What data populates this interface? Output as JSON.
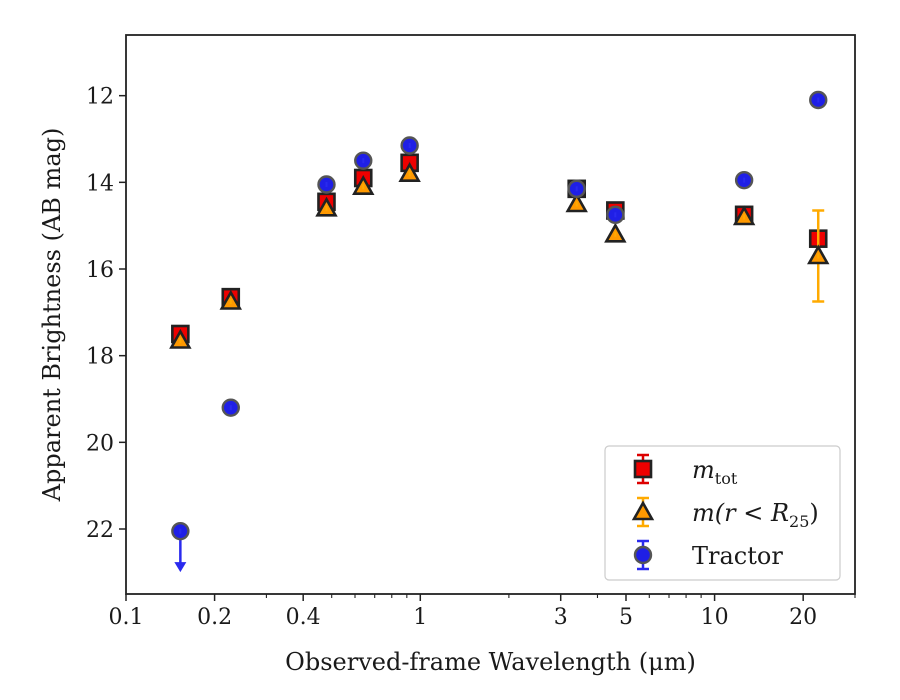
{
  "chart_data": {
    "type": "scatter",
    "title": "",
    "xlabel": "Observed-frame Wavelength (μm)",
    "ylabel": "Apparent Brightness (AB mag)",
    "xscale": "log",
    "xlim": [
      0.1,
      30
    ],
    "ylim": [
      23.5,
      10.6
    ],
    "y_inverted": true,
    "grid": false,
    "legend_position": "lower-right",
    "xticks": [
      {
        "value": 0.1,
        "label": "0.1"
      },
      {
        "value": 0.2,
        "label": "0.2"
      },
      {
        "value": 0.4,
        "label": "0.4"
      },
      {
        "value": 1,
        "label": "1"
      },
      {
        "value": 3,
        "label": "3"
      },
      {
        "value": 5,
        "label": "5"
      },
      {
        "value": 10,
        "label": "10"
      },
      {
        "value": 20,
        "label": "20"
      }
    ],
    "yticks": [
      {
        "value": 12,
        "label": "12"
      },
      {
        "value": 14,
        "label": "14"
      },
      {
        "value": 16,
        "label": "16"
      },
      {
        "value": 18,
        "label": "18"
      },
      {
        "value": 20,
        "label": "20"
      },
      {
        "value": 22,
        "label": "22"
      }
    ],
    "series": [
      {
        "key": "mtot",
        "legend_label": "m",
        "legend_sub": "tot",
        "marker": "square",
        "color": "#ee0000",
        "edge": "#222222",
        "errcolor": "#dd0000",
        "points": [
          {
            "x": 0.153,
            "y": 17.5
          },
          {
            "x": 0.227,
            "y": 16.65
          },
          {
            "x": 0.48,
            "y": 14.45
          },
          {
            "x": 0.64,
            "y": 13.9
          },
          {
            "x": 0.92,
            "y": 13.55
          },
          {
            "x": 3.4,
            "y": 14.15
          },
          {
            "x": 4.6,
            "y": 14.65
          },
          {
            "x": 12.6,
            "y": 14.75
          },
          {
            "x": 22.5,
            "y": 15.3
          }
        ]
      },
      {
        "key": "mr25",
        "legend_label": "m(r < R",
        "legend_sub": "25",
        "legend_tail": ")",
        "marker": "triangle",
        "color": "#ff9900",
        "edge": "#222222",
        "errcolor": "#ffaa00",
        "points": [
          {
            "x": 0.153,
            "y": 17.65
          },
          {
            "x": 0.227,
            "y": 16.75
          },
          {
            "x": 0.48,
            "y": 14.6
          },
          {
            "x": 0.64,
            "y": 14.1
          },
          {
            "x": 0.92,
            "y": 13.8
          },
          {
            "x": 3.4,
            "y": 14.5
          },
          {
            "x": 4.6,
            "y": 15.2
          },
          {
            "x": 12.6,
            "y": 14.8
          },
          {
            "x": 22.5,
            "y": 15.7,
            "yerr_low": 14.65,
            "yerr_high": 16.75
          }
        ]
      },
      {
        "key": "tractor",
        "legend_label": "Tractor",
        "marker": "circle",
        "color": "#1f1fe6",
        "edge": "#555555",
        "errcolor": "#2a2aee",
        "points": [
          {
            "x": 0.153,
            "y": 22.05,
            "upper_limit": true,
            "arrow_to": 22.95
          },
          {
            "x": 0.227,
            "y": 19.2
          },
          {
            "x": 0.48,
            "y": 14.05
          },
          {
            "x": 0.64,
            "y": 13.5
          },
          {
            "x": 0.92,
            "y": 13.15
          },
          {
            "x": 3.4,
            "y": 14.15
          },
          {
            "x": 4.6,
            "y": 14.75
          },
          {
            "x": 12.6,
            "y": 13.95
          },
          {
            "x": 22.5,
            "y": 12.1
          }
        ]
      }
    ]
  }
}
